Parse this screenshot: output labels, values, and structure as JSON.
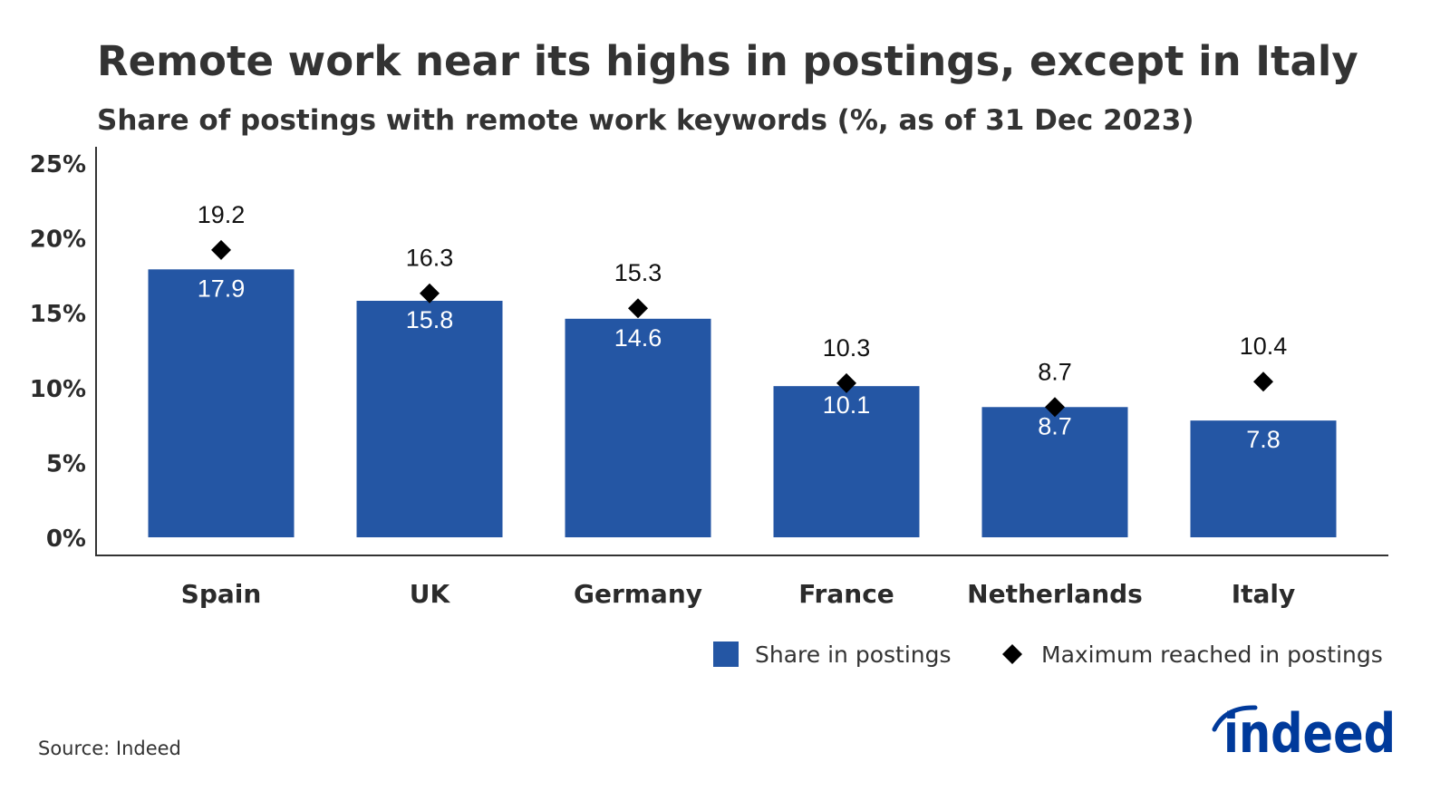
{
  "chart_data": {
    "type": "bar",
    "title": "Remote work near its highs in postings, except in Italy",
    "subtitle": "Share of postings with remote work keywords (%, as of 31 Dec 2023)",
    "categories": [
      "Spain",
      "UK",
      "Germany",
      "France",
      "Netherlands",
      "Italy"
    ],
    "series": [
      {
        "name": "Share in postings",
        "type": "bar",
        "color": "#2456a4",
        "values": [
          17.9,
          15.8,
          14.6,
          10.1,
          8.7,
          7.8
        ],
        "labels": [
          "17.9",
          "15.8",
          "14.6",
          "10.1",
          "8.7",
          "7.8"
        ]
      },
      {
        "name": "Maximum reached in postings",
        "type": "scatter",
        "marker": "diamond",
        "color": "#000000",
        "values": [
          19.2,
          16.3,
          15.3,
          10.3,
          8.7,
          10.4
        ],
        "labels": [
          "19.2",
          "16.3",
          "15.3",
          "10.3",
          "8.7",
          "10.4"
        ]
      }
    ],
    "xlabel": "",
    "ylabel": "",
    "ylim": [
      0,
      25
    ],
    "yticks": [
      0,
      5,
      10,
      15,
      20,
      25
    ],
    "ytick_labels": [
      "0%",
      "5%",
      "10%",
      "15%",
      "20%",
      "25%"
    ],
    "grid": false,
    "legend_position": "bottom-right"
  },
  "source": "Source: Indeed",
  "logo": {
    "text": "indeed",
    "color": "#003a9b"
  }
}
